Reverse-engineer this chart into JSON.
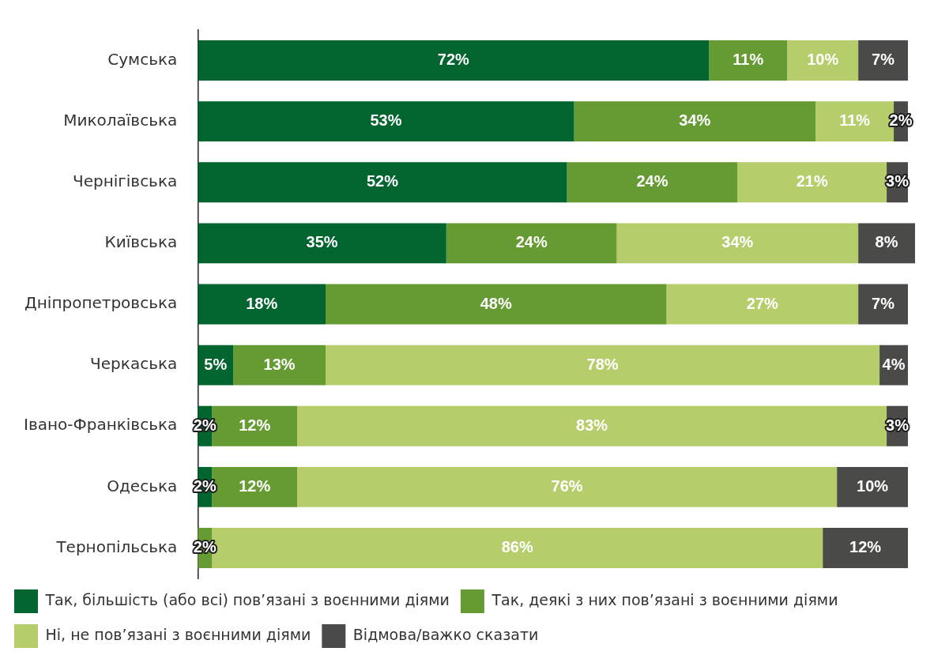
{
  "chart_data": {
    "type": "bar",
    "orientation": "horizontal",
    "stacked": true,
    "categories": [
      "Сумська",
      "Миколаївська",
      "Чернігівська",
      "Київська",
      "Дніпропетровська",
      "Черкаська",
      "Івано-Франківська",
      "Одеська",
      "Тернопільська"
    ],
    "series": [
      {
        "name": "Так, більшість (або всі) пов’язані з воєнними діями",
        "color": "#02652f",
        "values": [
          72,
          53,
          52,
          35,
          18,
          5,
          2,
          2,
          0
        ],
        "value_labels": [
          "72%",
          "53%",
          "52%",
          "35%",
          "18%",
          "5%",
          "2%",
          "2%",
          null
        ]
      },
      {
        "name": "Так, деякі з них пов’язані з воєнними діями",
        "color": "#669a32",
        "values": [
          11,
          34,
          24,
          24,
          48,
          13,
          12,
          12,
          2
        ],
        "value_labels": [
          "11%",
          "34%",
          "24%",
          "24%",
          "48%",
          "13%",
          "12%",
          "12%",
          "2%"
        ]
      },
      {
        "name": "Ні, не пов’язані з воєнними діями",
        "color": "#b5cd6b",
        "values": [
          10,
          11,
          21,
          34,
          27,
          78,
          83,
          76,
          86
        ],
        "value_labels": [
          "10%",
          "11%",
          "21%",
          "34%",
          "27%",
          "78%",
          "83%",
          "76%",
          "86%"
        ]
      },
      {
        "name": "Відмова/важко сказати",
        "color": "#4a4a48",
        "values": [
          7,
          2,
          3,
          8,
          7,
          4,
          3,
          10,
          12
        ],
        "value_labels": [
          "7%",
          "2%",
          "3%",
          "8%",
          "7%",
          "4%",
          "3%",
          "10%",
          "12%"
        ]
      }
    ],
    "xlim": [
      0,
      101
    ],
    "tick_labels": "y",
    "grid": false,
    "legend": "bottom"
  }
}
